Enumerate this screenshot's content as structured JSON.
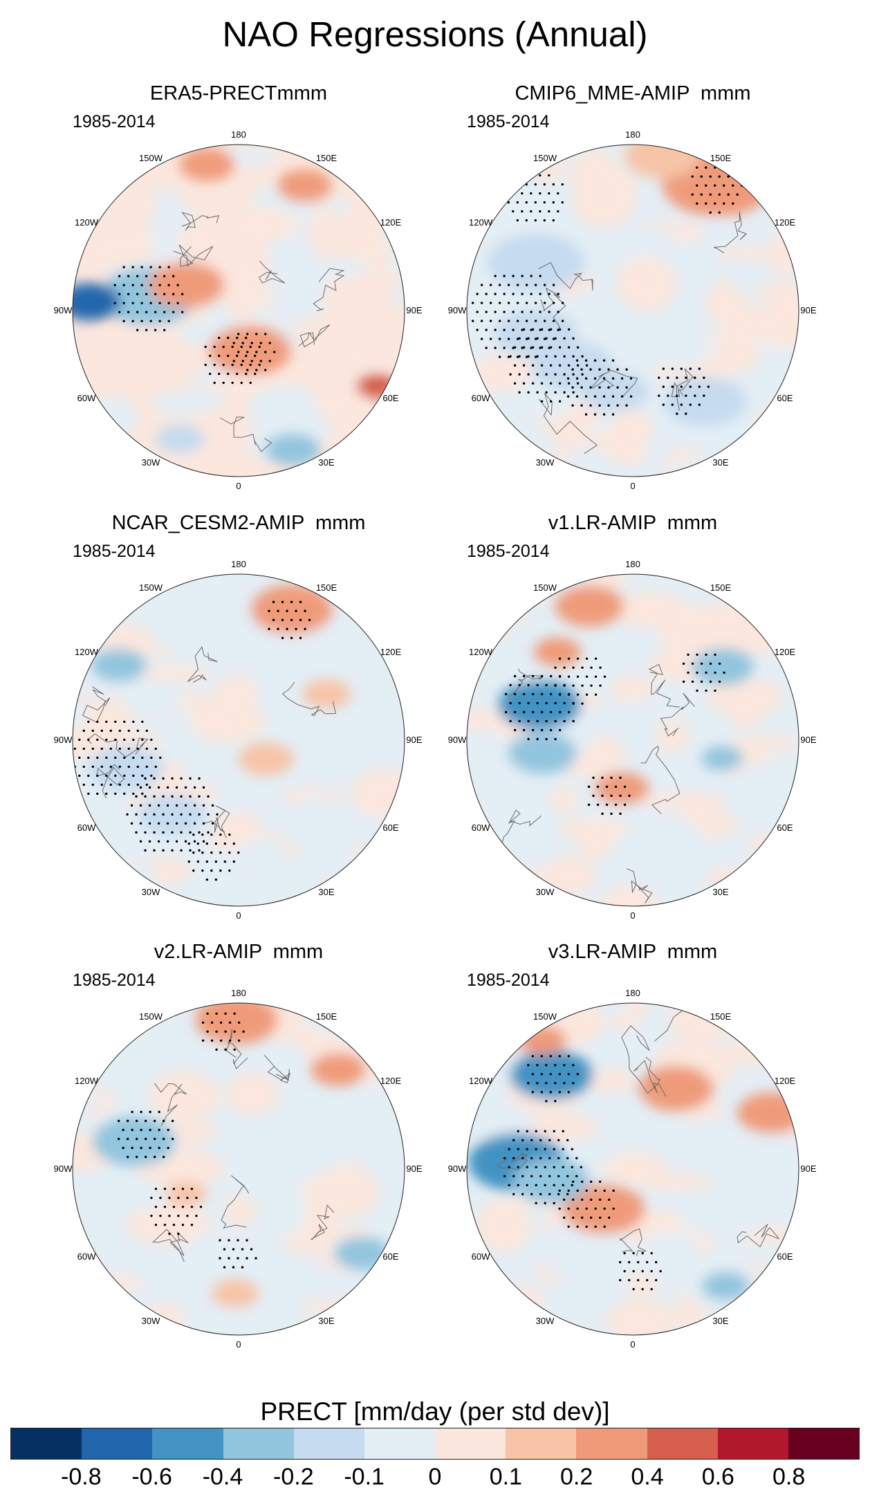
{
  "title": "NAO Regressions (Annual)",
  "colorbar": {
    "title": "PRECT [mm/day (per std dev)]",
    "colors": [
      "#053061",
      "#2166ac",
      "#4393c3",
      "#92c5de",
      "#c6dbef",
      "#e4eef5",
      "#fbe7de",
      "#f7c4a7",
      "#ef9b7a",
      "#d6604d",
      "#b2182b",
      "#67001f"
    ],
    "ticks": [
      "-0.8",
      "-0.6",
      "-0.4",
      "-0.2",
      "-0.1",
      "0",
      "0.1",
      "0.2",
      "0.4",
      "0.6",
      "0.8"
    ]
  },
  "longitude_labels": [
    "180",
    "150E",
    "120E",
    "90E",
    "60E",
    "30E",
    "0",
    "30W",
    "60W",
    "90W",
    "120W",
    "150W"
  ],
  "panels": [
    {
      "id": "era5",
      "title": "ERA5-PRECTmmm",
      "years": "1985-2014"
    },
    {
      "id": "cmip6",
      "title": "CMIP6_MME-AMIP  mmm",
      "years": "1985-2014"
    },
    {
      "id": "cesm2",
      "title": "NCAR_CESM2-AMIP  mmm",
      "years": "1985-2014"
    },
    {
      "id": "v1",
      "title": "v1.LR-AMIP  mmm",
      "years": "1985-2014"
    },
    {
      "id": "v2",
      "title": "v2.LR-AMIP  mmm",
      "years": "1985-2014"
    },
    {
      "id": "v3",
      "title": "v3.LR-AMIP  mmm",
      "years": "1985-2014"
    }
  ]
}
